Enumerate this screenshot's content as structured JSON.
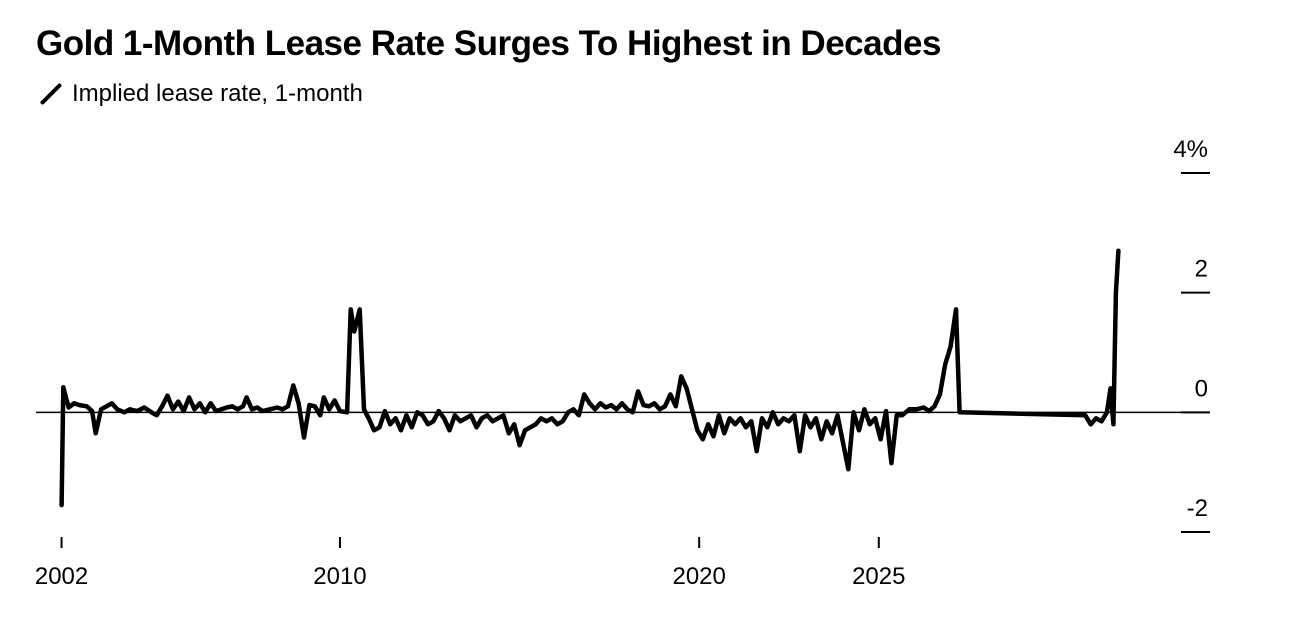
{
  "chart_data": {
    "type": "line",
    "title": "Gold 1-Month Lease Rate Surges To Highest in Decades",
    "series": [
      {
        "name": "Implied lease rate, 1-month",
        "color": "#000000",
        "points": [
          [
            2002.0,
            -1.55
          ],
          [
            2002.05,
            0.42
          ],
          [
            2002.12,
            0.25
          ],
          [
            2002.2,
            0.08
          ],
          [
            2002.35,
            0.15
          ],
          [
            2002.5,
            0.12
          ],
          [
            2002.7,
            0.1
          ],
          [
            2002.85,
            0.02
          ],
          [
            2002.95,
            -0.35
          ],
          [
            2003.1,
            0.05
          ],
          [
            2003.25,
            0.1
          ],
          [
            2003.4,
            0.15
          ],
          [
            2003.55,
            0.05
          ],
          [
            2003.75,
            0.0
          ],
          [
            2003.9,
            0.05
          ],
          [
            2004.1,
            0.02
          ],
          [
            2004.3,
            0.08
          ],
          [
            2004.5,
            0.0
          ],
          [
            2004.65,
            -0.05
          ],
          [
            2004.8,
            0.1
          ],
          [
            2004.95,
            0.28
          ],
          [
            2005.1,
            0.05
          ],
          [
            2005.25,
            0.18
          ],
          [
            2005.4,
            0.02
          ],
          [
            2005.55,
            0.25
          ],
          [
            2005.7,
            0.05
          ],
          [
            2005.85,
            0.15
          ],
          [
            2006.0,
            0.0
          ],
          [
            2006.15,
            0.15
          ],
          [
            2006.3,
            0.02
          ],
          [
            2006.45,
            0.05
          ],
          [
            2006.6,
            0.08
          ],
          [
            2006.75,
            0.1
          ],
          [
            2006.9,
            0.05
          ],
          [
            2007.05,
            0.1
          ],
          [
            2007.15,
            0.25
          ],
          [
            2007.3,
            0.05
          ],
          [
            2007.45,
            0.08
          ],
          [
            2007.6,
            0.02
          ],
          [
            2007.8,
            0.05
          ],
          [
            2008.0,
            0.08
          ],
          [
            2008.15,
            0.05
          ],
          [
            2008.3,
            0.1
          ],
          [
            2008.45,
            0.45
          ],
          [
            2008.6,
            0.15
          ],
          [
            2008.75,
            -0.42
          ],
          [
            2008.9,
            0.12
          ],
          [
            2009.05,
            0.1
          ],
          [
            2009.2,
            -0.05
          ],
          [
            2009.3,
            0.25
          ],
          [
            2009.45,
            0.05
          ],
          [
            2009.6,
            0.2
          ],
          [
            2009.75,
            0.02
          ],
          [
            2009.95,
            0.0
          ],
          [
            2010.05,
            1.72
          ],
          [
            2010.15,
            1.35
          ],
          [
            2010.3,
            1.72
          ],
          [
            2010.42,
            0.05
          ],
          [
            2010.55,
            -0.1
          ],
          [
            2010.7,
            -0.3
          ],
          [
            2010.85,
            -0.25
          ],
          [
            2011.0,
            0.02
          ],
          [
            2011.15,
            -0.2
          ],
          [
            2011.3,
            -0.1
          ],
          [
            2011.45,
            -0.3
          ],
          [
            2011.6,
            -0.05
          ],
          [
            2011.75,
            -0.25
          ],
          [
            2011.9,
            0.0
          ],
          [
            2012.05,
            -0.05
          ],
          [
            2012.2,
            -0.2
          ],
          [
            2012.35,
            -0.15
          ],
          [
            2012.5,
            0.02
          ],
          [
            2012.65,
            -0.1
          ],
          [
            2012.8,
            -0.3
          ],
          [
            2012.95,
            -0.05
          ],
          [
            2013.1,
            -0.15
          ],
          [
            2013.25,
            -0.1
          ],
          [
            2013.4,
            -0.05
          ],
          [
            2013.55,
            -0.25
          ],
          [
            2013.7,
            -0.1
          ],
          [
            2013.85,
            -0.05
          ],
          [
            2014.0,
            -0.15
          ],
          [
            2014.15,
            -0.1
          ],
          [
            2014.3,
            -0.05
          ],
          [
            2014.45,
            -0.35
          ],
          [
            2014.6,
            -0.2
          ],
          [
            2014.75,
            -0.55
          ],
          [
            2014.9,
            -0.3
          ],
          [
            2015.05,
            -0.25
          ],
          [
            2015.2,
            -0.2
          ],
          [
            2015.35,
            -0.1
          ],
          [
            2015.5,
            -0.15
          ],
          [
            2015.65,
            -0.1
          ],
          [
            2015.8,
            -0.2
          ],
          [
            2015.95,
            -0.15
          ],
          [
            2016.1,
            0.0
          ],
          [
            2016.25,
            0.05
          ],
          [
            2016.4,
            -0.05
          ],
          [
            2016.55,
            0.3
          ],
          [
            2016.7,
            0.15
          ],
          [
            2016.85,
            0.05
          ],
          [
            2017.0,
            0.15
          ],
          [
            2017.15,
            0.08
          ],
          [
            2017.3,
            0.12
          ],
          [
            2017.45,
            0.05
          ],
          [
            2017.6,
            0.15
          ],
          [
            2017.75,
            0.05
          ],
          [
            2017.9,
            0.0
          ],
          [
            2018.05,
            0.35
          ],
          [
            2018.2,
            0.12
          ],
          [
            2018.35,
            0.1
          ],
          [
            2018.5,
            0.15
          ],
          [
            2018.65,
            0.05
          ],
          [
            2018.8,
            0.1
          ],
          [
            2018.95,
            0.3
          ],
          [
            2019.1,
            0.1
          ],
          [
            2019.25,
            0.6
          ],
          [
            2019.4,
            0.4
          ],
          [
            2019.55,
            0.05
          ],
          [
            2019.7,
            -0.3
          ],
          [
            2019.85,
            -0.45
          ],
          [
            2020.0,
            -0.2
          ],
          [
            2020.15,
            -0.4
          ],
          [
            2020.3,
            -0.05
          ],
          [
            2020.45,
            -0.35
          ],
          [
            2020.6,
            -0.1
          ],
          [
            2020.75,
            -0.2
          ],
          [
            2020.9,
            -0.1
          ],
          [
            2021.05,
            -0.25
          ],
          [
            2021.2,
            -0.15
          ],
          [
            2021.35,
            -0.65
          ],
          [
            2021.5,
            -0.1
          ],
          [
            2021.65,
            -0.25
          ],
          [
            2021.8,
            0.0
          ],
          [
            2021.95,
            -0.2
          ],
          [
            2022.1,
            -0.1
          ],
          [
            2022.25,
            -0.15
          ],
          [
            2022.4,
            -0.05
          ],
          [
            2022.55,
            -0.65
          ],
          [
            2022.7,
            -0.05
          ],
          [
            2022.85,
            -0.25
          ],
          [
            2023.0,
            -0.1
          ],
          [
            2023.15,
            -0.45
          ],
          [
            2023.3,
            -0.15
          ],
          [
            2023.45,
            -0.35
          ],
          [
            2023.6,
            -0.05
          ],
          [
            2023.75,
            -0.5
          ],
          [
            2023.9,
            -0.95
          ],
          [
            2024.05,
            0.0
          ],
          [
            2024.2,
            -0.3
          ],
          [
            2024.35,
            0.05
          ],
          [
            2024.5,
            -0.2
          ],
          [
            2024.65,
            -0.1
          ],
          [
            2024.8,
            -0.45
          ],
          [
            2024.95,
            0.02
          ],
          [
            2025.1,
            -0.85
          ],
          [
            2025.25,
            -0.05
          ],
          [
            2025.4,
            -0.05
          ],
          [
            2025.6,
            0.05
          ],
          [
            2025.8,
            0.05
          ],
          [
            2026.0,
            0.08
          ],
          [
            2026.15,
            0.02
          ],
          [
            2026.3,
            0.1
          ],
          [
            2026.45,
            0.3
          ],
          [
            2026.6,
            0.8
          ],
          [
            2026.75,
            1.1
          ],
          [
            2026.9,
            1.72
          ],
          [
            2027.0,
            0.0
          ],
          [
            2030.5,
            -0.05
          ],
          [
            2030.65,
            -0.2
          ],
          [
            2030.8,
            -0.1
          ],
          [
            2030.95,
            -0.15
          ],
          [
            2031.1,
            0.0
          ],
          [
            2031.2,
            0.4
          ],
          [
            2031.28,
            -0.2
          ],
          [
            2031.35,
            2.0
          ],
          [
            2031.42,
            2.7
          ]
        ]
      }
    ],
    "x_axis": {
      "min": 2001.4,
      "max": 2032.3,
      "ticks": [
        {
          "value": 2002.0,
          "label": "2002"
        },
        {
          "value": 2009.75,
          "label": "2010"
        },
        {
          "value": 2019.75,
          "label": "2020"
        },
        {
          "value": 2024.75,
          "label": "2025"
        }
      ]
    },
    "y_axis": {
      "min": -2.05,
      "max": 4.3,
      "ticks": [
        {
          "value": 4,
          "label": "4%"
        },
        {
          "value": 2,
          "label": "2"
        },
        {
          "value": 0,
          "label": "0"
        },
        {
          "value": -2,
          "label": "-2"
        }
      ],
      "position": "right"
    },
    "grid": false,
    "zero_line": true,
    "legend_position": "top-left"
  }
}
